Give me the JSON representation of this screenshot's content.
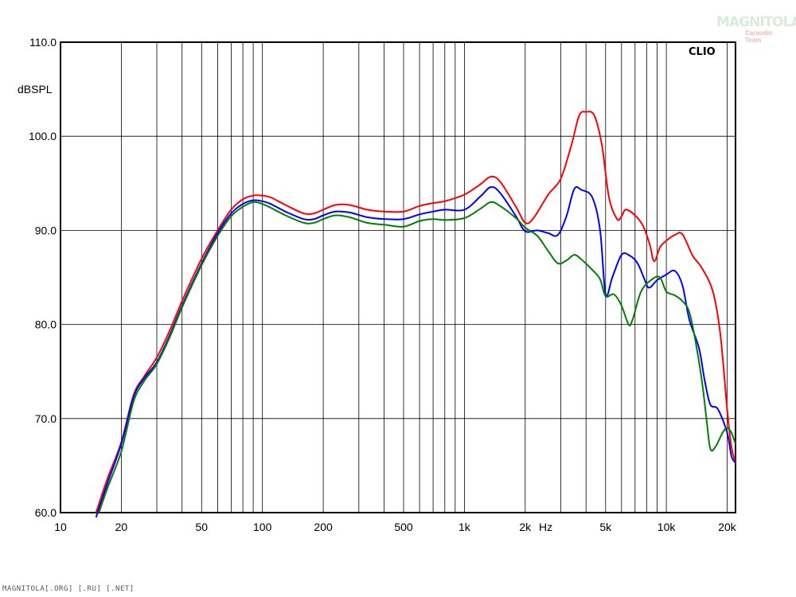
{
  "chart_data": {
    "type": "line",
    "title": "",
    "xlabel": "Hz",
    "ylabel": "dBSPL",
    "x_scale": "log",
    "xlim": [
      10,
      22000
    ],
    "ylim": [
      60,
      110
    ],
    "grid": true,
    "brand_label": "CLIO",
    "x_ticks": [
      {
        "value": 10,
        "label": "10"
      },
      {
        "value": 20,
        "label": "20"
      },
      {
        "value": 50,
        "label": "50"
      },
      {
        "value": 100,
        "label": "100"
      },
      {
        "value": 200,
        "label": "200"
      },
      {
        "value": 500,
        "label": "500"
      },
      {
        "value": 1000,
        "label": "1k"
      },
      {
        "value": 2000,
        "label": "2k"
      },
      {
        "value": 5000,
        "label": "5k"
      },
      {
        "value": 10000,
        "label": "10k"
      },
      {
        "value": 20000,
        "label": "20k"
      }
    ],
    "y_ticks": [
      {
        "value": 60,
        "label": "60.0"
      },
      {
        "value": 70,
        "label": "70.0"
      },
      {
        "value": 80,
        "label": "80.0"
      },
      {
        "value": 90,
        "label": "90.0"
      },
      {
        "value": 100,
        "label": "100.0"
      },
      {
        "value": 110,
        "label": "110.0"
      }
    ],
    "series": [
      {
        "color": "#ff0000",
        "points": [
          [
            15,
            60
          ],
          [
            17,
            63.5
          ],
          [
            20,
            67.5
          ],
          [
            23,
            72.5
          ],
          [
            26,
            74.5
          ],
          [
            30,
            76.5
          ],
          [
            35,
            79.5
          ],
          [
            40,
            82.5
          ],
          [
            50,
            87
          ],
          [
            60,
            90
          ],
          [
            70,
            92.2
          ],
          [
            80,
            93.3
          ],
          [
            90,
            93.7
          ],
          [
            100,
            93.7
          ],
          [
            110,
            93.5
          ],
          [
            130,
            92.7
          ],
          [
            160,
            91.8
          ],
          [
            180,
            91.8
          ],
          [
            200,
            92.2
          ],
          [
            230,
            92.7
          ],
          [
            270,
            92.7
          ],
          [
            330,
            92.2
          ],
          [
            400,
            92.0
          ],
          [
            500,
            92.0
          ],
          [
            600,
            92.6
          ],
          [
            700,
            92.9
          ],
          [
            800,
            93.1
          ],
          [
            1000,
            93.8
          ],
          [
            1200,
            94.9
          ],
          [
            1350,
            95.7
          ],
          [
            1500,
            95.2
          ],
          [
            1800,
            92.5
          ],
          [
            2000,
            90.8
          ],
          [
            2200,
            91.3
          ],
          [
            2600,
            93.8
          ],
          [
            3000,
            95.5
          ],
          [
            3400,
            99.2
          ],
          [
            3700,
            102.2
          ],
          [
            4000,
            102.6
          ],
          [
            4400,
            102.2
          ],
          [
            4800,
            99
          ],
          [
            5200,
            93.5
          ],
          [
            5700,
            91.2
          ],
          [
            6000,
            91.5
          ],
          [
            6300,
            92.2
          ],
          [
            7000,
            91.6
          ],
          [
            7700,
            90.4
          ],
          [
            8300,
            88.4
          ],
          [
            8700,
            86.7
          ],
          [
            9300,
            88.2
          ],
          [
            10000,
            88.9
          ],
          [
            11000,
            89.5
          ],
          [
            12000,
            89.6
          ],
          [
            13500,
            87.3
          ],
          [
            15000,
            86.0
          ],
          [
            17000,
            83.5
          ],
          [
            18500,
            79
          ],
          [
            20000,
            71
          ],
          [
            21000,
            67
          ],
          [
            22000,
            65.3
          ]
        ]
      },
      {
        "color": "#0000ff",
        "points": [
          [
            15,
            59.5
          ],
          [
            17,
            63
          ],
          [
            20,
            67.3
          ],
          [
            23,
            72.3
          ],
          [
            26,
            74.3
          ],
          [
            30,
            76
          ],
          [
            35,
            79
          ],
          [
            40,
            82
          ],
          [
            50,
            86.5
          ],
          [
            60,
            89.7
          ],
          [
            70,
            91.8
          ],
          [
            80,
            92.8
          ],
          [
            90,
            93.2
          ],
          [
            100,
            93.1
          ],
          [
            110,
            92.8
          ],
          [
            130,
            92
          ],
          [
            160,
            91.2
          ],
          [
            180,
            91.2
          ],
          [
            200,
            91.6
          ],
          [
            230,
            92
          ],
          [
            270,
            91.9
          ],
          [
            330,
            91.4
          ],
          [
            400,
            91.2
          ],
          [
            500,
            91.2
          ],
          [
            600,
            91.7
          ],
          [
            700,
            92.0
          ],
          [
            800,
            92.2
          ],
          [
            1000,
            92.2
          ],
          [
            1200,
            93.6
          ],
          [
            1350,
            94.6
          ],
          [
            1500,
            94.0
          ],
          [
            1800,
            91.5
          ],
          [
            2000,
            89.9
          ],
          [
            2300,
            90.0
          ],
          [
            2600,
            89.7
          ],
          [
            2900,
            89.5
          ],
          [
            3200,
            91.5
          ],
          [
            3500,
            94.4
          ],
          [
            3800,
            94.3
          ],
          [
            4300,
            93.5
          ],
          [
            4700,
            90
          ],
          [
            5000,
            83.2
          ],
          [
            5400,
            85
          ],
          [
            6000,
            87.4
          ],
          [
            6600,
            87.3
          ],
          [
            7200,
            86.5
          ],
          [
            7800,
            84.8
          ],
          [
            8200,
            83.9
          ],
          [
            9000,
            84.7
          ],
          [
            10000,
            85.3
          ],
          [
            11000,
            85.7
          ],
          [
            12000,
            84.2
          ],
          [
            13000,
            80.5
          ],
          [
            14500,
            77.5
          ],
          [
            15500,
            74
          ],
          [
            16500,
            71.5
          ],
          [
            18000,
            71
          ],
          [
            20000,
            68.5
          ],
          [
            21000,
            66
          ],
          [
            22000,
            65.3
          ]
        ]
      },
      {
        "color": "#008000",
        "points": [
          [
            15.5,
            60
          ],
          [
            17,
            62.5
          ],
          [
            20,
            66.5
          ],
          [
            23,
            71.8
          ],
          [
            26,
            74
          ],
          [
            30,
            75.8
          ],
          [
            35,
            78.8
          ],
          [
            40,
            81.8
          ],
          [
            50,
            86.3
          ],
          [
            60,
            89.4
          ],
          [
            70,
            91.5
          ],
          [
            80,
            92.5
          ],
          [
            90,
            93.0
          ],
          [
            100,
            92.8
          ],
          [
            110,
            92.4
          ],
          [
            130,
            91.6
          ],
          [
            160,
            90.8
          ],
          [
            180,
            90.8
          ],
          [
            200,
            91.2
          ],
          [
            230,
            91.6
          ],
          [
            270,
            91.4
          ],
          [
            330,
            90.8
          ],
          [
            400,
            90.6
          ],
          [
            500,
            90.4
          ],
          [
            600,
            91.0
          ],
          [
            700,
            91.2
          ],
          [
            800,
            91.1
          ],
          [
            1000,
            91.3
          ],
          [
            1200,
            92.3
          ],
          [
            1350,
            93.0
          ],
          [
            1500,
            92.6
          ],
          [
            1800,
            91.3
          ],
          [
            2000,
            90.3
          ],
          [
            2300,
            89.4
          ],
          [
            2600,
            87.8
          ],
          [
            2900,
            86.5
          ],
          [
            3200,
            86.8
          ],
          [
            3500,
            87.4
          ],
          [
            3800,
            86.9
          ],
          [
            4300,
            85.8
          ],
          [
            4700,
            84.8
          ],
          [
            5000,
            83.0
          ],
          [
            5500,
            83.2
          ],
          [
            6000,
            82.0
          ],
          [
            6500,
            80
          ],
          [
            6800,
            80.5
          ],
          [
            7500,
            83.5
          ],
          [
            8500,
            84.8
          ],
          [
            9300,
            85.0
          ],
          [
            10000,
            83.5
          ],
          [
            11000,
            83.1
          ],
          [
            12000,
            82.5
          ],
          [
            13000,
            81.3
          ],
          [
            14000,
            78
          ],
          [
            15000,
            74
          ],
          [
            15800,
            70
          ],
          [
            16500,
            66.8
          ],
          [
            17500,
            67
          ],
          [
            19000,
            68.5
          ],
          [
            20000,
            69
          ],
          [
            21000,
            68.5
          ],
          [
            22000,
            67.3
          ]
        ]
      }
    ]
  },
  "watermark": {
    "main": "MAGNITOLA",
    "sub": "Caraudio Team"
  },
  "footer_text": "MAGNITOLA[.ORG] [.RU] [.NET]"
}
